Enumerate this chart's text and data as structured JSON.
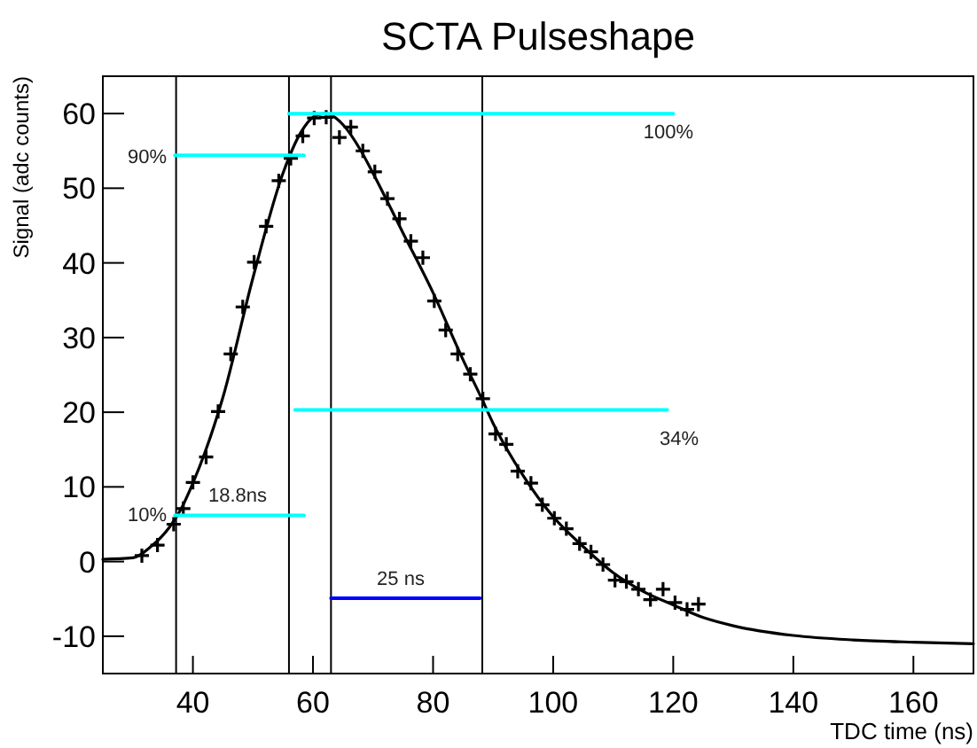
{
  "chart_data": {
    "type": "scatter",
    "title": "SCTA Pulseshape",
    "xlabel": "TDC time (ns)",
    "ylabel": "Signal (adc counts)",
    "xlim": [
      25,
      170
    ],
    "ylim": [
      -15,
      65
    ],
    "xticks": [
      40,
      60,
      80,
      100,
      120,
      140,
      160
    ],
    "yticks": [
      -10,
      0,
      10,
      20,
      30,
      40,
      50,
      60
    ],
    "grid": false,
    "series": [
      {
        "marker": "cross",
        "color": "#000000",
        "x": [
          31.5,
          34.1,
          36.8,
          38.4,
          40,
          42.2,
          44.2,
          46.3,
          48.3,
          50.2,
          52.2,
          54.3,
          56.3,
          58.3,
          60.2,
          62.2,
          64.4,
          66.3,
          68.3,
          70.3,
          72.4,
          74.4,
          76.3,
          78.3,
          80.2,
          82.1,
          84.1,
          86.2,
          88.3,
          90.4,
          92.2,
          94.1,
          96.3,
          98.2,
          100.2,
          102.2,
          104.4,
          106.3,
          108.3,
          110.3,
          112.2,
          114.2,
          116.2,
          118.3,
          120.3,
          122.3,
          124.2
        ],
        "values": [
          0.8,
          2.2,
          5.0,
          7.1,
          10.6,
          14.0,
          20.1,
          27.8,
          34.1,
          40.1,
          44.9,
          51.0,
          54.0,
          57.0,
          59.4,
          59.5,
          56.8,
          58.2,
          55.0,
          52.2,
          48.6,
          45.9,
          42.9,
          40.7,
          34.9,
          31.0,
          27.8,
          25.1,
          21.8,
          17.1,
          15.7,
          12.1,
          10.5,
          7.6,
          5.8,
          4.4,
          2.4,
          1.3,
          -0.4,
          -2.5,
          -2.7,
          -3.7,
          -5.1,
          -3.7,
          -5.5,
          -6.4,
          -5.7
        ]
      },
      {
        "type": "line",
        "marker": "none",
        "line_style": "solid",
        "color": "#000000",
        "x": [
          25,
          30,
          33,
          36,
          38,
          40,
          45,
          50,
          55,
          58,
          60,
          62,
          63,
          65,
          68,
          70,
          75,
          80,
          85,
          88,
          90,
          95,
          100,
          105,
          110,
          115,
          120,
          125,
          130,
          140,
          150,
          160,
          170
        ],
        "values": [
          0.3,
          0.5,
          2,
          4.5,
          7,
          10.5,
          22,
          38,
          52,
          57.5,
          59.5,
          60,
          59.8,
          58.5,
          55,
          52,
          44,
          36,
          27,
          22,
          18.5,
          11.5,
          6,
          2,
          -1.5,
          -4,
          -5.8,
          -7.5,
          -8.6,
          -9.9,
          -10.5,
          -10.8,
          -11.0
        ]
      },
      {
        "type": "line",
        "marker": "none",
        "line_style": "solid",
        "color": "#00ffff",
        "x": [
          56,
          120
        ],
        "values": [
          60,
          60
        ]
      },
      {
        "type": "line",
        "marker": "none",
        "line_style": "solid",
        "color": "#00ffff",
        "x": [
          37,
          58.5
        ],
        "values": [
          54.4,
          54.4
        ]
      },
      {
        "type": "line",
        "marker": "none",
        "line_style": "solid",
        "color": "#00ffff",
        "x": [
          57,
          119
        ],
        "values": [
          20.3,
          20.3
        ]
      },
      {
        "type": "line",
        "marker": "none",
        "line_style": "solid",
        "color": "#00ffff",
        "x": [
          37,
          58.5
        ],
        "values": [
          6.2,
          6.2
        ]
      },
      {
        "type": "line",
        "marker": "none",
        "line_style": "solid",
        "color": "#0000ff",
        "x": [
          63,
          87.8
        ],
        "values": [
          -4.9,
          -4.9
        ]
      }
    ],
    "ref_lines": [
      {
        "axis": "x",
        "value": 37.2,
        "color": "#000000"
      },
      {
        "axis": "x",
        "value": 56,
        "color": "#000000"
      },
      {
        "axis": "x",
        "value": 63,
        "color": "#000000"
      },
      {
        "axis": "x",
        "value": 88.2,
        "color": "#000000"
      }
    ],
    "annotations": [
      "100%",
      "90%",
      "34%",
      "10%",
      "18.8ns",
      "25 ns"
    ]
  }
}
